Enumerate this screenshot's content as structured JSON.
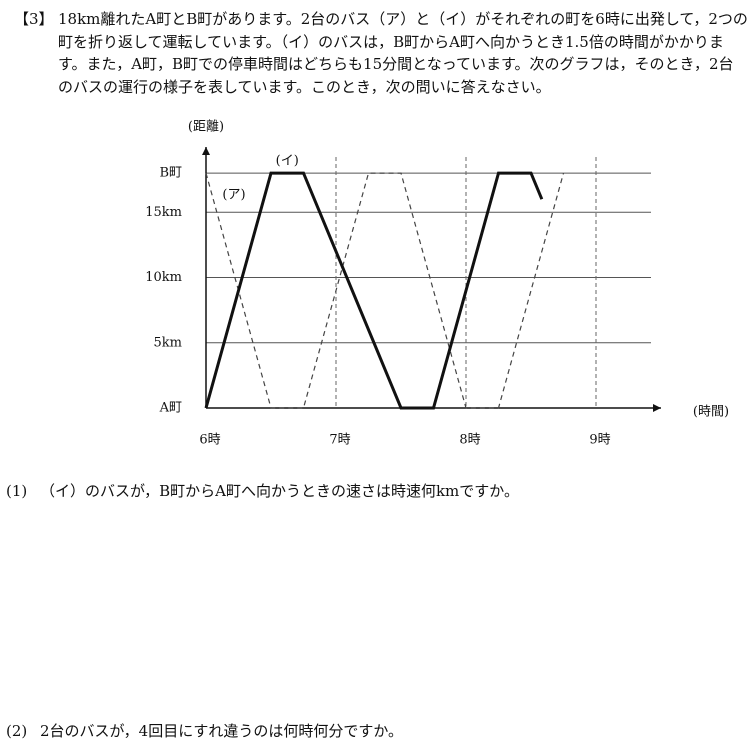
{
  "problem": {
    "number": "【3】",
    "text": "18km離れたA町とB町があります。2台のバス（ア）と（イ）がそれぞれの町を6時に出発して，2つの町を折り返して運転しています。（イ）のバスは，B町からA町へ向かうとき1.5倍の時間がかかります。また，A町，B町での停車時間はどちらも15分間となっています。次のグラフは，そのとき，2台のバスの運行の様子を表しています。このとき，次の問いに答えなさい。"
  },
  "chart_data": {
    "type": "line",
    "y_label": "(距離)",
    "x_label": "(時間)",
    "xlim": [
      6,
      9.5
    ],
    "ylim": [
      0,
      20
    ],
    "xticks": [
      {
        "value": 6,
        "label": "6時"
      },
      {
        "value": 7,
        "label": "7時"
      },
      {
        "value": 8,
        "label": "8時"
      },
      {
        "value": 9,
        "label": "9時"
      }
    ],
    "yticks": [
      {
        "value": 0,
        "label": "A町"
      },
      {
        "value": 5,
        "label": "5km"
      },
      {
        "value": 10,
        "label": "10km"
      },
      {
        "value": 15,
        "label": "15km"
      },
      {
        "value": 18,
        "label": "B町"
      }
    ],
    "grid": true,
    "series": [
      {
        "name": "(ア)",
        "color": "#444444",
        "dashed": true,
        "x": [
          6,
          6.5,
          6.75,
          7.25,
          7.5,
          8,
          8.25,
          8.75
        ],
        "values": [
          18,
          0,
          0,
          18,
          18,
          0,
          0,
          18
        ]
      },
      {
        "name": "(イ)",
        "color": "#111111",
        "dashed": false,
        "x": [
          6,
          6.5,
          6.75,
          7.5,
          7.75,
          8.25,
          8.5,
          8.5833
        ],
        "values": [
          0,
          18,
          18,
          0,
          0,
          18,
          18,
          16
        ]
      }
    ]
  },
  "questions": [
    {
      "number": "(1)",
      "text": "（イ）のバスが，B町からA町へ向かうときの速さは時速何kmですか。"
    },
    {
      "number": "(2)",
      "text": "2台のバスが，4回目にすれ違うのは何時何分ですか。"
    }
  ]
}
